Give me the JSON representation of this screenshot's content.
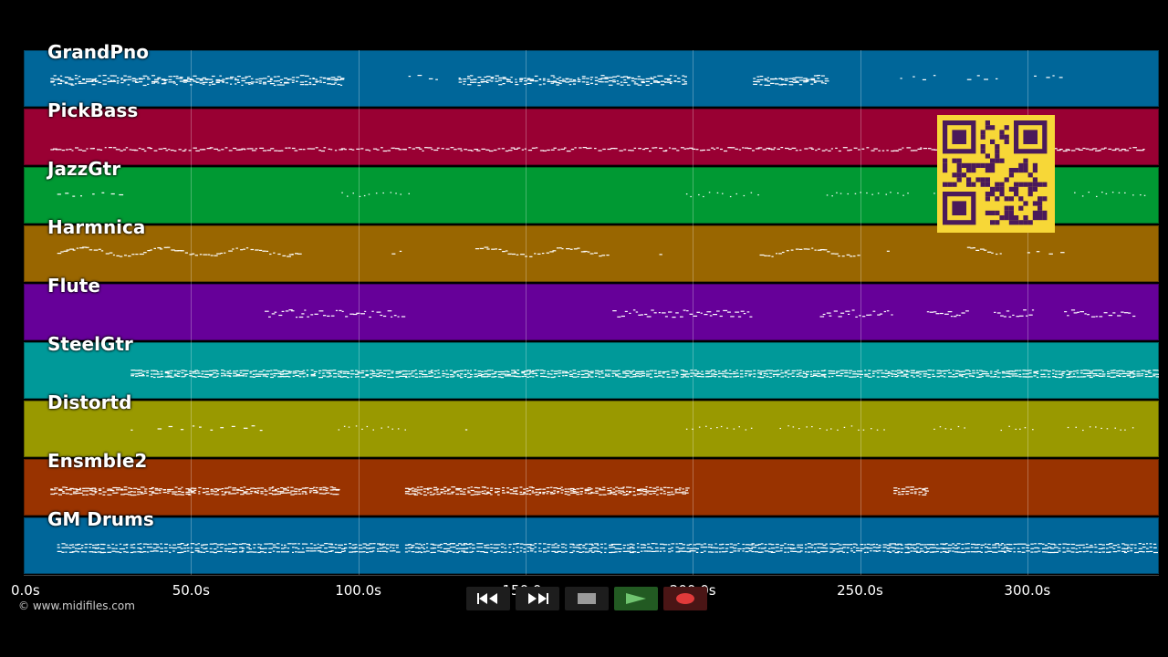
{
  "tracks": [
    {
      "name": "GrandPno",
      "color": "#006699"
    },
    {
      "name": "PickBass",
      "color": "#990033"
    },
    {
      "name": "JazzGtr",
      "color": "#009933"
    },
    {
      "name": "Harmnica",
      "color": "#996600"
    },
    {
      "name": "Flute",
      "color": "#660099"
    },
    {
      "name": "SteelGtr",
      "color": "#009999"
    },
    {
      "name": "Distortd",
      "color": "#999900"
    },
    {
      "name": "Ensmble2",
      "color": "#993300"
    },
    {
      "name": "GM Drums",
      "color": "#006699"
    }
  ],
  "timeline": {
    "ticks": [
      "0.0s",
      "50.0s",
      "100.0s",
      "150.0s",
      "200.0s",
      "250.0s",
      "300.0s"
    ],
    "tick_seconds": [
      0,
      50,
      100,
      150,
      200,
      250,
      300
    ],
    "max_seconds": 340
  },
  "copyright": "© www.midifiles.com",
  "controls": {
    "rewind": {
      "icon": "rewind-icon"
    },
    "fast_forward": {
      "icon": "fast-forward-icon"
    },
    "stop": {
      "icon": "stop-icon"
    },
    "play": {
      "icon": "play-icon",
      "color": "#6fc46f"
    },
    "record": {
      "icon": "record-icon",
      "color": "#e03a3a"
    }
  },
  "qr_code": {
    "background": "#f7d737",
    "foreground": "#4a1a5a"
  }
}
